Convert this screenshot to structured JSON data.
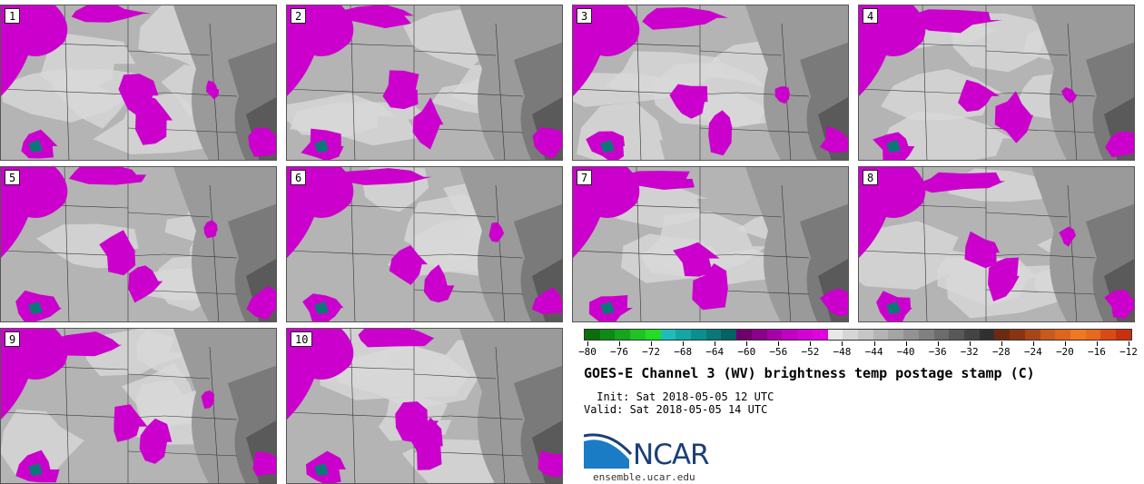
{
  "panels": [
    {
      "label": "1"
    },
    {
      "label": "2"
    },
    {
      "label": "3"
    },
    {
      "label": "4"
    },
    {
      "label": "5"
    },
    {
      "label": "6"
    },
    {
      "label": "7"
    },
    {
      "label": "8"
    },
    {
      "label": "9"
    },
    {
      "label": "10"
    }
  ],
  "colorbar": {
    "ticks": [
      "−80",
      "−76",
      "−72",
      "−68",
      "−64",
      "−60",
      "−56",
      "−52",
      "−48",
      "−44",
      "−40",
      "−36",
      "−32",
      "−28",
      "−24",
      "−20",
      "−16",
      "−12"
    ],
    "colors": [
      "#0a6e0a",
      "#0f8a14",
      "#16a51c",
      "#1fc424",
      "#22dd22",
      "#1fbcbc",
      "#14a5a5",
      "#0a8f8f",
      "#0a7878",
      "#066262",
      "#6e006e",
      "#8a008a",
      "#a800a8",
      "#c200c2",
      "#d400d4",
      "#e200e2",
      "#e8e8e8",
      "#d6d6d6",
      "#c6c6c6",
      "#b4b4b4",
      "#a4a4a4",
      "#929292",
      "#808080",
      "#6c6c6c",
      "#585858",
      "#444444",
      "#303030",
      "#6e2a10",
      "#8a3414",
      "#a8461a",
      "#c85a1e",
      "#e0641e",
      "#f07820",
      "#e86a1c",
      "#dc4a14",
      "#c83010"
    ]
  },
  "title": "GOES-E Channel 3 (WV) brightness temp postage stamp (C)",
  "init_line": " Init: Sat 2018-05-05 12 UTC",
  "valid_line": "Valid: Sat 2018-05-05 14 UTC",
  "logo_text": "NCAR",
  "site": "ensemble.ucar.edu",
  "colors": {
    "moist": "#cc00cc",
    "land": "#b4b4b4",
    "dry": "#7a7a7a",
    "light": "#d8d8d8"
  }
}
